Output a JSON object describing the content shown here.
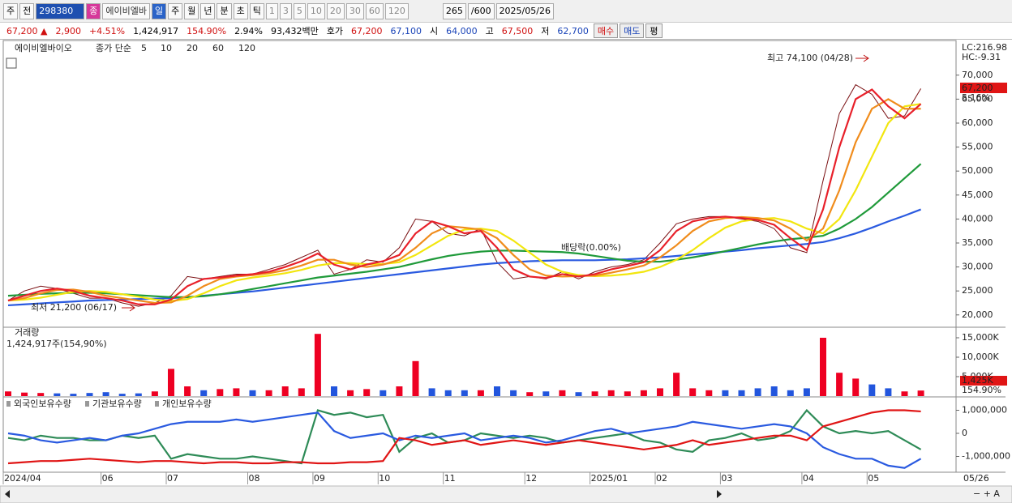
{
  "toolbar": [
    "주",
    "전",
    "298380",
    "종",
    "에이비엘바",
    "일",
    "주",
    "월",
    "년",
    "분",
    "초",
    "틱",
    "1",
    "3",
    "5",
    "10",
    "20",
    "30",
    "60",
    "120",
    "265",
    "/600",
    "2025/05/26"
  ],
  "quote": [
    "67,200 ▲",
    "2,900",
    "+4.51%",
    "1,424,917",
    "154.90%",
    "2.94%",
    "93,432백만",
    "호가",
    "67,200",
    "67,100",
    "시",
    "64,000",
    "고",
    "67,500",
    "저",
    "62,700",
    "매수",
    "매도",
    "평"
  ],
  "chart_data": [
    {
      "type": "line",
      "title": "에이비엘바이오",
      "ma_label": "종가 단순",
      "close": [
        23000,
        25000,
        26000,
        25500,
        24500,
        23500,
        23500,
        22500,
        21800,
        22500,
        24000,
        28000,
        27500,
        28000,
        28500,
        28500,
        29500,
        30500,
        32000,
        33500,
        28500,
        29500,
        31500,
        31000,
        34000,
        40000,
        39500,
        37000,
        36500,
        38000,
        31000,
        27500,
        28000,
        27500,
        29000,
        27500,
        29000,
        30000,
        30500,
        31500,
        35000,
        39000,
        40000,
        40500,
        40500,
        40000,
        39500,
        38000,
        34000,
        33000,
        48000,
        62000,
        68000,
        66000,
        61000,
        61500,
        67200
      ],
      "close_color": "#7a0f12",
      "series": [
        {
          "name": "5",
          "color": "#e8202a",
          "values": [
            23000,
            24000,
            25000,
            25500,
            25000,
            24000,
            23500,
            23000,
            22200,
            22200,
            23200,
            26000,
            27500,
            27800,
            28200,
            28500,
            29000,
            30000,
            31200,
            32800,
            30500,
            29500,
            30500,
            31200,
            32500,
            37000,
            39500,
            38500,
            37000,
            37500,
            34000,
            29500,
            28000,
            27700,
            28500,
            28000,
            28500,
            29500,
            30200,
            31000,
            33500,
            37500,
            39500,
            40200,
            40500,
            40200,
            39800,
            38800,
            36000,
            33500,
            42000,
            55000,
            65000,
            67000,
            63500,
            61000,
            64000
          ]
        },
        {
          "name": "10",
          "color": "#f08c1c",
          "values": [
            23000,
            23500,
            24500,
            25200,
            25300,
            24800,
            24000,
            23500,
            23000,
            22500,
            22600,
            24000,
            26000,
            27500,
            28000,
            28300,
            28700,
            29300,
            30300,
            31500,
            31500,
            30500,
            30000,
            30500,
            31500,
            34000,
            37000,
            38500,
            38200,
            37800,
            36000,
            32500,
            29500,
            28200,
            28000,
            28100,
            28200,
            28800,
            29500,
            30300,
            32000,
            34500,
            37500,
            39500,
            40200,
            40400,
            40200,
            39700,
            38000,
            35500,
            38000,
            46000,
            56000,
            63000,
            65000,
            63000,
            63000
          ]
        },
        {
          "name": "20",
          "color": "#f2e60e",
          "values": [
            23000,
            23200,
            23600,
            24200,
            24800,
            25000,
            24800,
            24300,
            23800,
            23200,
            22900,
            23300,
            24500,
            26000,
            27200,
            27800,
            28200,
            28700,
            29400,
            30300,
            30800,
            30800,
            30600,
            30600,
            31000,
            32500,
            34500,
            36500,
            37800,
            38000,
            37500,
            35500,
            33000,
            30500,
            29000,
            28300,
            28100,
            28200,
            28500,
            29000,
            30000,
            31500,
            33500,
            36000,
            38200,
            39500,
            40000,
            40200,
            39500,
            38000,
            37000,
            40000,
            46000,
            53000,
            60000,
            63500,
            64000
          ]
        },
        {
          "name": "60",
          "color": "#1f9a3a",
          "values": [
            24000,
            24200,
            24400,
            24500,
            24600,
            24600,
            24500,
            24300,
            24100,
            23900,
            23700,
            23700,
            23900,
            24300,
            24800,
            25400,
            26000,
            26600,
            27200,
            27800,
            28200,
            28600,
            29000,
            29500,
            30000,
            30800,
            31600,
            32300,
            32800,
            33200,
            33400,
            33400,
            33300,
            33200,
            33100,
            32800,
            32300,
            31800,
            31300,
            31100,
            31100,
            31500,
            32000,
            32600,
            33300,
            34000,
            34700,
            35300,
            35800,
            36100,
            36500,
            38000,
            40000,
            42500,
            45500,
            48500,
            51500
          ]
        },
        {
          "name": "120",
          "color": "#2a5ae0",
          "values": [
            22000,
            22200,
            22400,
            22600,
            22800,
            23000,
            23100,
            23200,
            23300,
            23400,
            23500,
            23700,
            24000,
            24300,
            24600,
            24900,
            25300,
            25700,
            26100,
            26500,
            26900,
            27300,
            27700,
            28100,
            28500,
            28900,
            29300,
            29700,
            30100,
            30500,
            30800,
            31000,
            31200,
            31300,
            31400,
            31400,
            31400,
            31500,
            31600,
            31800,
            32000,
            32300,
            32600,
            32900,
            33200,
            33500,
            33900,
            34200,
            34500,
            34800,
            35200,
            36000,
            37000,
            38200,
            39500,
            40700,
            42000
          ]
        }
      ],
      "ylim": [
        17600,
        75200
      ],
      "yticks": [
        {
          "value": 20000,
          "label": "20,000"
        },
        {
          "value": 25000,
          "label": "25,000"
        },
        {
          "value": 30000,
          "label": "30,000"
        },
        {
          "value": 35000,
          "label": "35,000"
        },
        {
          "value": 40000,
          "label": "40,000"
        },
        {
          "value": 45000,
          "label": "45,000"
        },
        {
          "value": 50000,
          "label": "50,000"
        },
        {
          "value": 55000,
          "label": "55,000"
        },
        {
          "value": 60000,
          "label": "60,000"
        },
        {
          "value": 65000,
          "label": "65,000"
        },
        {
          "value": 70000,
          "label": "70,000"
        }
      ],
      "annotations": [
        "최고 74,100 (04/28)",
        "최저 21,200 (06/17)",
        "배당락(0.00%)"
      ],
      "side_labels": [
        "LC:216.98",
        "HC:-9.31",
        "67,200",
        "5.16%"
      ]
    },
    {
      "type": "bar",
      "title": "거래량",
      "subtitle": "1,424,917주(154,90%)",
      "values": [
        1200000,
        900000,
        800000,
        700000,
        600000,
        800000,
        1000000,
        600000,
        700000,
        1200000,
        7000000,
        2500000,
        1500000,
        1800000,
        2000000,
        1500000,
        1500000,
        2500000,
        2000000,
        16000000,
        2500000,
        1500000,
        1800000,
        1500000,
        2500000,
        9000000,
        2000000,
        1500000,
        1500000,
        1500000,
        2500000,
        1500000,
        1000000,
        1200000,
        1500000,
        1000000,
        1200000,
        1500000,
        1200000,
        1500000,
        2000000,
        6000000,
        2000000,
        1500000,
        1500000,
        1500000,
        2000000,
        2500000,
        1500000,
        2000000,
        15000000,
        6000000,
        4500000,
        3000000,
        2000000,
        1200000,
        1424917
      ],
      "colors": [
        "#e02",
        "#e02",
        "#e02",
        "#25d",
        "#25d",
        "#25d",
        "#25d",
        "#25d",
        "#25d",
        "#e02",
        "#e02",
        "#e02",
        "#25d",
        "#e02",
        "#e02",
        "#25d",
        "#e02",
        "#e02",
        "#e02",
        "#e02",
        "#25d",
        "#e02",
        "#e02",
        "#25d",
        "#e02",
        "#e02",
        "#25d",
        "#25d",
        "#25d",
        "#e02",
        "#25d",
        "#25d",
        "#e02",
        "#25d",
        "#e02",
        "#25d",
        "#e02",
        "#e02",
        "#e02",
        "#e02",
        "#e02",
        "#e02",
        "#e02",
        "#e02",
        "#25d",
        "#25d",
        "#25d",
        "#25d",
        "#25d",
        "#25d",
        "#e02",
        "#e02",
        "#e02",
        "#25d",
        "#25d",
        "#e02",
        "#e02"
      ],
      "ylim": [
        0,
        17500000
      ],
      "yticks": [
        {
          "value": 5000000,
          "label": "5,000K"
        },
        {
          "value": 10000000,
          "label": "10,000K"
        },
        {
          "value": 15000000,
          "label": "15,000K"
        }
      ],
      "side_labels": [
        "1,425K",
        "154.90%"
      ]
    },
    {
      "type": "line",
      "categories": [
        "2024/04",
        null,
        null,
        null,
        null,
        null,
        "06",
        null,
        null,
        null,
        "07",
        null,
        null,
        null,
        null,
        "08",
        null,
        null,
        null,
        "09",
        null,
        null,
        null,
        "10",
        null,
        null,
        null,
        "11",
        null,
        null,
        null,
        null,
        "12",
        null,
        null,
        null,
        "2025/01",
        null,
        null,
        null,
        "02",
        null,
        null,
        null,
        "03",
        null,
        null,
        null,
        null,
        "04",
        null,
        null,
        null,
        "05",
        null,
        null,
        null
      ],
      "cursor_label": "05/26",
      "series": [
        {
          "name": "외국인보유수량",
          "color": "#e01515",
          "values": [
            -1300000,
            -1250000,
            -1200000,
            -1200000,
            -1150000,
            -1100000,
            -1150000,
            -1200000,
            -1250000,
            -1200000,
            -1200000,
            -1250000,
            -1300000,
            -1250000,
            -1250000,
            -1300000,
            -1300000,
            -1250000,
            -1250000,
            -1300000,
            -1300000,
            -1250000,
            -1250000,
            -1200000,
            -200000,
            -300000,
            -500000,
            -400000,
            -300000,
            -500000,
            -400000,
            -300000,
            -400000,
            -500000,
            -400000,
            -300000,
            -400000,
            -500000,
            -600000,
            -700000,
            -600000,
            -500000,
            -300000,
            -500000,
            -400000,
            -300000,
            -200000,
            -100000,
            -100000,
            -300000,
            300000,
            500000,
            700000,
            900000,
            1000000,
            1000000,
            950000
          ]
        },
        {
          "name": "기관보유수량",
          "color": "#2a5ae0",
          "values": [
            0,
            -100000,
            -300000,
            -400000,
            -300000,
            -200000,
            -300000,
            -100000,
            0,
            200000,
            400000,
            500000,
            500000,
            500000,
            600000,
            500000,
            600000,
            700000,
            800000,
            900000,
            100000,
            -200000,
            -100000,
            0,
            -300000,
            -100000,
            -200000,
            -100000,
            0,
            -300000,
            -200000,
            -100000,
            -200000,
            -400000,
            -300000,
            -100000,
            100000,
            200000,
            0,
            100000,
            200000,
            300000,
            500000,
            400000,
            300000,
            200000,
            300000,
            400000,
            300000,
            0,
            -600000,
            -900000,
            -1100000,
            -1100000,
            -1400000,
            -1500000,
            -1100000
          ]
        },
        {
          "name": "개인보유수량",
          "color": "#2e8b57",
          "values": [
            -200000,
            -300000,
            -100000,
            -200000,
            -200000,
            -300000,
            -300000,
            -100000,
            -200000,
            -100000,
            -1100000,
            -900000,
            -1000000,
            -1100000,
            -1100000,
            -1000000,
            -1100000,
            -1200000,
            -1300000,
            1000000,
            800000,
            900000,
            700000,
            800000,
            -800000,
            -200000,
            0,
            -400000,
            -300000,
            0,
            -100000,
            -200000,
            -100000,
            -200000,
            -400000,
            -300000,
            -200000,
            -100000,
            0,
            -300000,
            -400000,
            -700000,
            -800000,
            -300000,
            -200000,
            0,
            -300000,
            -200000,
            100000,
            1000000,
            300000,
            0,
            100000,
            0,
            100000,
            -300000,
            -700000
          ]
        }
      ],
      "ylim": [
        -1650000,
        1510000
      ],
      "yticks": [
        {
          "value": 1000000,
          "label": "1,000,000"
        },
        0,
        {
          "value": -1000000,
          "label": "-1,000,000"
        }
      ]
    }
  ]
}
